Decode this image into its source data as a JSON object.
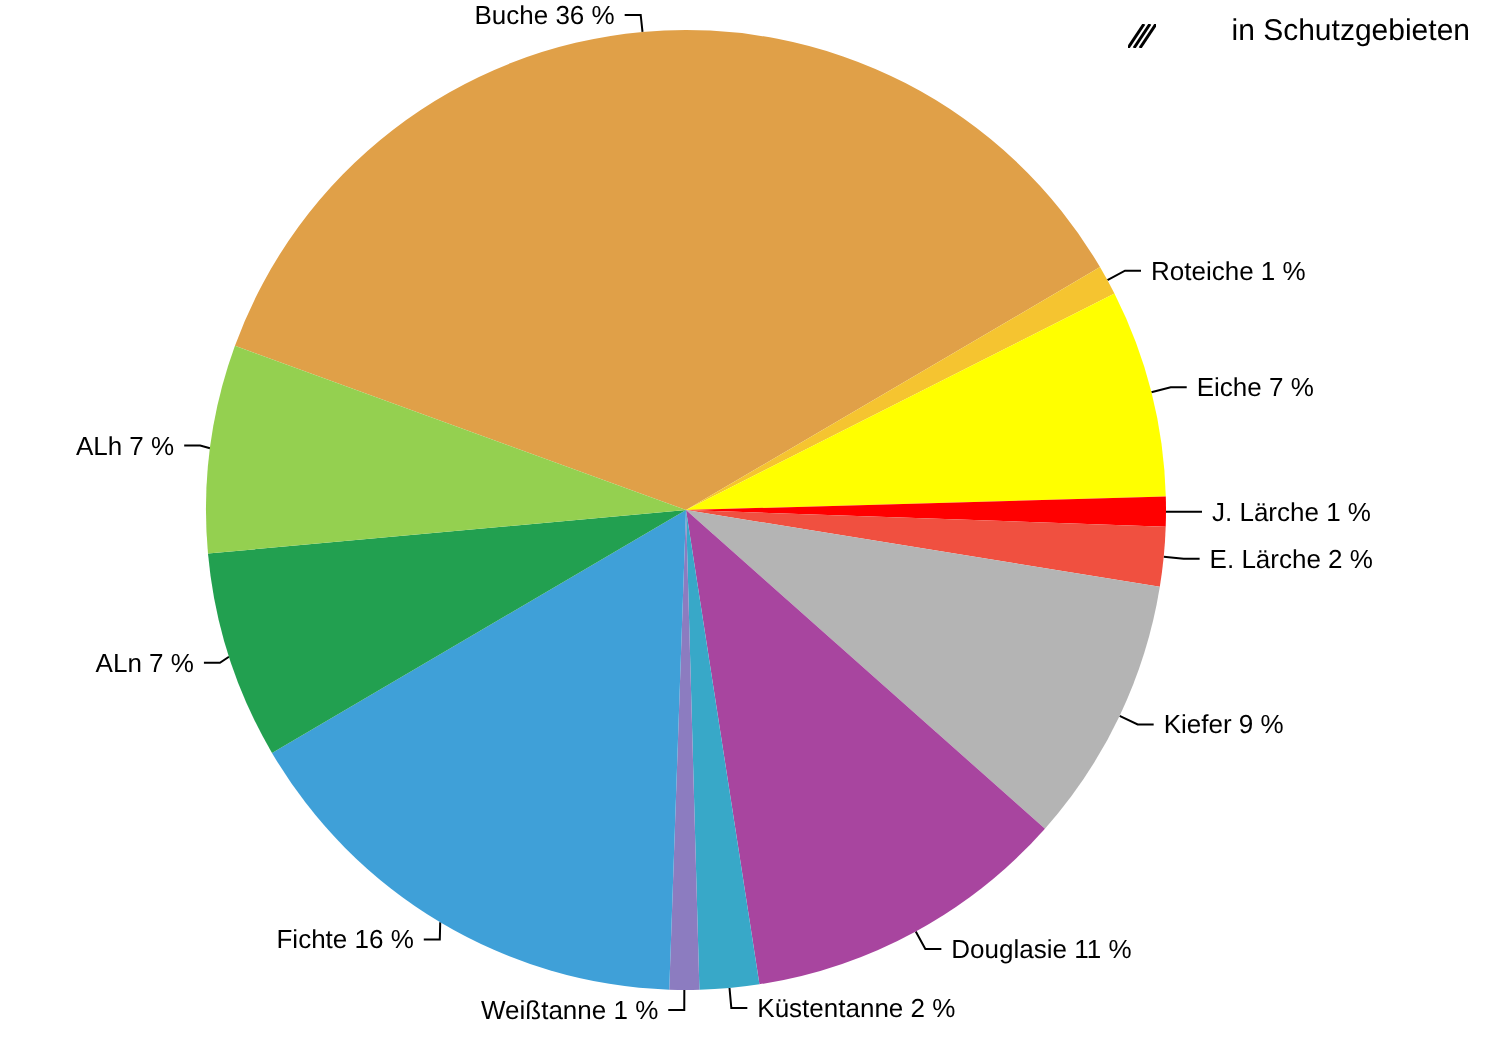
{
  "chart_data": {
    "type": "pie",
    "categories": [
      "Buche",
      "Roteiche",
      "Eiche",
      "J. Lärche",
      "E. Lärche",
      "Kiefer",
      "Douglasie",
      "Küstentanne",
      "Weißtanne",
      "Fichte",
      "ALn",
      "ALh"
    ],
    "values": [
      36,
      1,
      7,
      1,
      2,
      9,
      11,
      2,
      1,
      16,
      7,
      7
    ],
    "value_labels": [
      "36 %",
      "1 %",
      "7 %",
      "1 %",
      "2 %",
      "9 %",
      "11 %",
      "2 %",
      "1 %",
      "16 %",
      "7 %",
      "7 %"
    ],
    "colors": [
      "#e0a048",
      "#f5c430",
      "#ffff00",
      "#ff0000",
      "#f05040",
      "#b4b4b4",
      "#a8459f",
      "#38a8c8",
      "#8c7cc0",
      "#3fa0d8",
      "#22a050",
      "#94d050"
    ],
    "annotations": [
      "in Schutzgebieten"
    ]
  }
}
